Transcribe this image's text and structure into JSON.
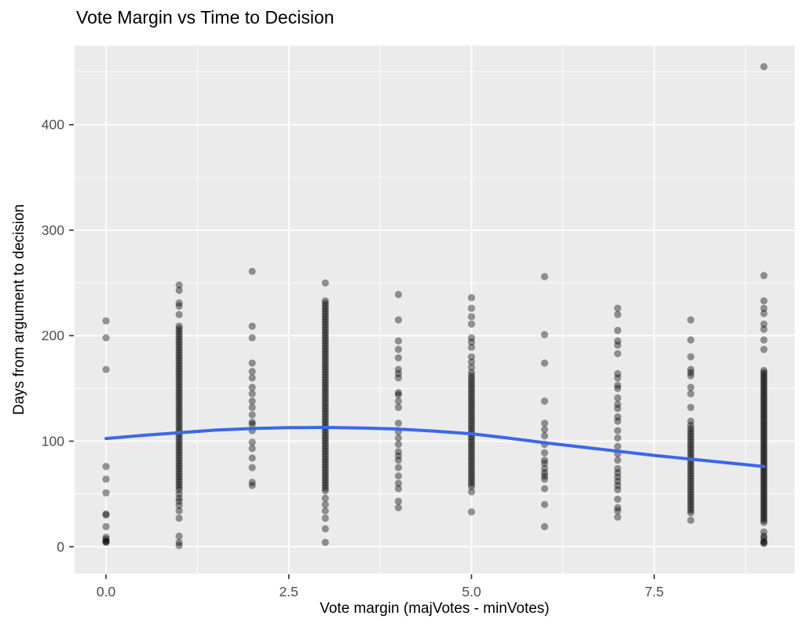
{
  "chart_data": {
    "type": "scatter",
    "title": "Vote Margin vs Time to Decision",
    "xlabel": "Vote margin (majVotes - minVotes)",
    "ylabel": "Days from argument to decision",
    "xlim": [
      -0.43,
      9.42
    ],
    "ylim": [
      -25.5,
      475
    ],
    "grid": true,
    "legend": "none",
    "panel_bg": "#EBEBEB",
    "grid_color": "#FFFFFF",
    "tick_mark_color": "#333333",
    "tick_label_color": "#4D4D4D",
    "point_color": "#000000",
    "point_opacity": 0.4,
    "point_radius": 4.6,
    "smooth_color": "#3B68E8",
    "smooth_width": 4,
    "x_ticks": [
      {
        "v": 0.0,
        "label": "0.0"
      },
      {
        "v": 2.5,
        "label": "2.5"
      },
      {
        "v": 5.0,
        "label": "5.0"
      },
      {
        "v": 7.5,
        "label": "7.5"
      }
    ],
    "x_minor": [
      1.25,
      3.75,
      6.25,
      8.75
    ],
    "y_ticks": [
      {
        "v": 0,
        "label": "0"
      },
      {
        "v": 100,
        "label": "100"
      },
      {
        "v": 200,
        "label": "200"
      },
      {
        "v": 300,
        "label": "300"
      },
      {
        "v": 400,
        "label": "400"
      }
    ],
    "y_minor": [
      50,
      150,
      250,
      350,
      450
    ],
    "smooth_line": {
      "x": [
        0,
        0.5,
        1,
        1.5,
        2,
        2.5,
        3,
        3.5,
        4,
        4.5,
        5,
        5.5,
        6,
        6.5,
        7,
        7.5,
        8,
        8.5,
        9
      ],
      "y": [
        102.5,
        105.5,
        108,
        110.5,
        112,
        112.8,
        113,
        112.5,
        111.5,
        109.5,
        107,
        103,
        98.5,
        94.5,
        90.5,
        86.5,
        83,
        79.5,
        76
      ]
    },
    "strips": [
      {
        "x": 0,
        "points": [
          214,
          198,
          168,
          76,
          64,
          51,
          31,
          30,
          19,
          9,
          7,
          5,
          5,
          4
        ],
        "bands": []
      },
      {
        "x": 1,
        "points": [
          248,
          243,
          231,
          228,
          220,
          50,
          46,
          43,
          39,
          34,
          27,
          10,
          4,
          1
        ],
        "bands": [
          {
            "min": 54,
            "max": 209,
            "step": 2.5
          }
        ]
      },
      {
        "x": 2,
        "points": [
          261,
          209,
          198,
          174,
          166,
          160,
          151,
          145,
          138,
          132,
          125,
          118,
          116,
          110,
          99,
          93,
          84,
          75,
          61,
          58
        ],
        "bands": []
      },
      {
        "x": 3,
        "points": [
          250,
          46,
          40,
          34,
          27,
          17,
          4
        ],
        "bands": [
          {
            "min": 52,
            "max": 233,
            "step": 2.5
          }
        ]
      },
      {
        "x": 4,
        "points": [
          239,
          215,
          195,
          187,
          179,
          168,
          164,
          160,
          146,
          144,
          138,
          132,
          117,
          109,
          103,
          97,
          90,
          86,
          82,
          75,
          67,
          60,
          55,
          43,
          37
        ],
        "bands": []
      },
      {
        "x": 5,
        "points": [
          236,
          226,
          218,
          211,
          198,
          194,
          189,
          180,
          175,
          170,
          165,
          52,
          33
        ],
        "bands": [
          {
            "min": 55,
            "max": 162,
            "step": 2.5
          }
        ]
      },
      {
        "x": 6,
        "points": [
          256,
          201,
          174,
          138,
          117,
          111,
          105,
          97,
          89,
          82,
          79,
          74,
          70,
          67,
          64,
          55,
          40,
          19
        ],
        "bands": []
      },
      {
        "x": 7,
        "points": [
          226,
          220,
          205,
          195,
          191,
          183,
          164,
          160,
          153,
          150,
          141,
          135,
          131,
          123,
          119,
          110,
          103,
          95,
          88,
          82,
          74,
          70,
          66,
          62,
          58,
          54,
          45,
          37,
          34,
          28
        ],
        "bands": []
      },
      {
        "x": 8,
        "points": [
          215,
          196,
          180,
          168,
          165,
          162,
          151,
          145,
          132,
          119,
          115,
          25
        ],
        "bands": [
          {
            "min": 30,
            "max": 112,
            "step": 2.5
          }
        ]
      },
      {
        "x": 9,
        "points": [
          455,
          257,
          233,
          226,
          221,
          211,
          206,
          196,
          187,
          14,
          10,
          8,
          5,
          4,
          3
        ],
        "bands": [
          {
            "min": 22,
            "max": 167,
            "step": 2
          }
        ]
      }
    ]
  }
}
